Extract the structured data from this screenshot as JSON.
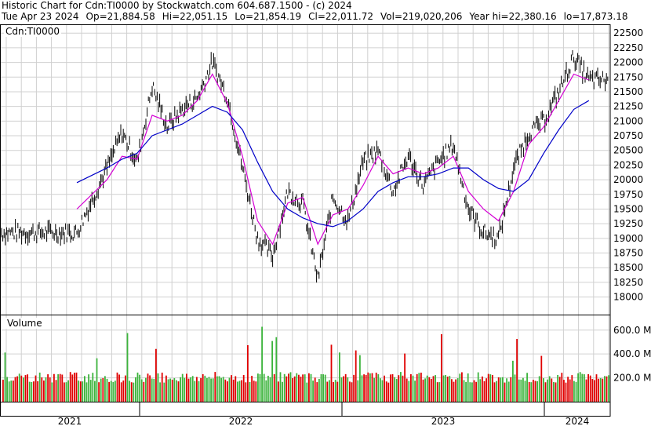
{
  "header": {
    "title": "Historic Chart for Cdn:TI0000 by Stockwatch.com 604.687.1500 - (c) 2024",
    "date": "Tue Apr 23 2024",
    "open": "Op=21,884.58",
    "high": "Hi=22,051.15",
    "low": "Lo=21,854.19",
    "close": "Cl=22,011.72",
    "volume": "Vol=219,020,206",
    "year_high": "Year hi=22,380.16",
    "year_low": "lo=17,873.18"
  },
  "chart_data": [
    {
      "type": "line",
      "title": "Cdn:TI0000",
      "ylim": [
        17700,
        22650
      ],
      "y_ticks": [
        "22500",
        "22250",
        "22000",
        "21750",
        "21500",
        "21250",
        "21000",
        "20750",
        "20500",
        "20250",
        "20000",
        "19750",
        "19500",
        "19250",
        "19000",
        "18750",
        "18500",
        "18250",
        "18000"
      ],
      "y_tick_values": [
        22500,
        22250,
        22000,
        21750,
        21500,
        21250,
        21000,
        20750,
        20500,
        20250,
        20000,
        19750,
        19500,
        19250,
        19000,
        18750,
        18500,
        18250,
        18000
      ],
      "x_ticks": [
        "2021",
        "2022",
        "2023",
        "2024"
      ],
      "series": [
        {
          "name": "price",
          "color": "#000000",
          "x": [
            "2021-06",
            "2021-08",
            "2021-09",
            "2021-10",
            "2021-11",
            "2021-12",
            "2022-01",
            "2022-02",
            "2022-03",
            "2022-04",
            "2022-05",
            "2022-06",
            "2022-07",
            "2022-08",
            "2022-09",
            "2022-10",
            "2022-11",
            "2022-12",
            "2023-01",
            "2023-02",
            "2023-03",
            "2023-04",
            "2023-05",
            "2023-06",
            "2023-07",
            "2023-08",
            "2023-09",
            "2023-10",
            "2023-11",
            "2023-12",
            "2024-01",
            "2024-02",
            "2024-03",
            "2024-04"
          ],
          "values": [
            19100,
            20200,
            20800,
            20300,
            21600,
            20900,
            21200,
            21400,
            22000,
            21400,
            20200,
            19000,
            18700,
            19800,
            19600,
            18300,
            19700,
            19300,
            20300,
            20500,
            19800,
            20400,
            19900,
            20300,
            20600,
            19500,
            19100,
            19000,
            20200,
            20800,
            21000,
            21500,
            22100,
            21700
          ]
        },
        {
          "name": "short moving average",
          "color": "#d400d4",
          "x": [
            "2021-06",
            "2021-08",
            "2021-09",
            "2021-10",
            "2021-11",
            "2021-12",
            "2022-01",
            "2022-02",
            "2022-03",
            "2022-04",
            "2022-05",
            "2022-06",
            "2022-07",
            "2022-08",
            "2022-09",
            "2022-10",
            "2022-11",
            "2022-12",
            "2023-01",
            "2023-02",
            "2023-03",
            "2023-04",
            "2023-05",
            "2023-06",
            "2023-07",
            "2023-08",
            "2023-09",
            "2023-10",
            "2023-11",
            "2023-12",
            "2024-01",
            "2024-02",
            "2024-03",
            "2024-04"
          ],
          "values": [
            19500,
            20000,
            20400,
            20350,
            21100,
            21000,
            21100,
            21350,
            21800,
            21300,
            20400,
            19300,
            18900,
            19600,
            19700,
            18900,
            19400,
            19500,
            19900,
            20400,
            20100,
            20200,
            20100,
            20200,
            20400,
            19800,
            19500,
            19300,
            19800,
            20600,
            20900,
            21350,
            21800,
            21700
          ]
        },
        {
          "name": "long moving average",
          "color": "#0000c8",
          "x": [
            "2021-06",
            "2021-08",
            "2021-09",
            "2021-10",
            "2021-11",
            "2021-12",
            "2022-01",
            "2022-02",
            "2022-03",
            "2022-04",
            "2022-05",
            "2022-06",
            "2022-07",
            "2022-08",
            "2022-09",
            "2022-10",
            "2022-11",
            "2022-12",
            "2023-01",
            "2023-02",
            "2023-03",
            "2023-04",
            "2023-05",
            "2023-06",
            "2023-07",
            "2023-08",
            "2023-09",
            "2023-10",
            "2023-11",
            "2023-12",
            "2024-01",
            "2024-02",
            "2024-03",
            "2024-04"
          ],
          "values": [
            19950,
            20200,
            20350,
            20450,
            20750,
            20850,
            20950,
            21100,
            21250,
            21150,
            20850,
            20300,
            19800,
            19500,
            19350,
            19250,
            19200,
            19300,
            19500,
            19800,
            19950,
            20050,
            20050,
            20100,
            20200,
            20200,
            20000,
            19850,
            19800,
            20000,
            20450,
            20850,
            21200,
            21350
          ]
        }
      ]
    },
    {
      "type": "bar",
      "title": "Volume",
      "y_ticks": [
        "600.0 M",
        "400.0 M",
        "200.0 M"
      ],
      "y_tick_values": [
        600,
        400,
        200
      ],
      "ylim": [
        0,
        730
      ],
      "colors": {
        "up": "#3cb43c",
        "down": "#e00000"
      }
    }
  ]
}
